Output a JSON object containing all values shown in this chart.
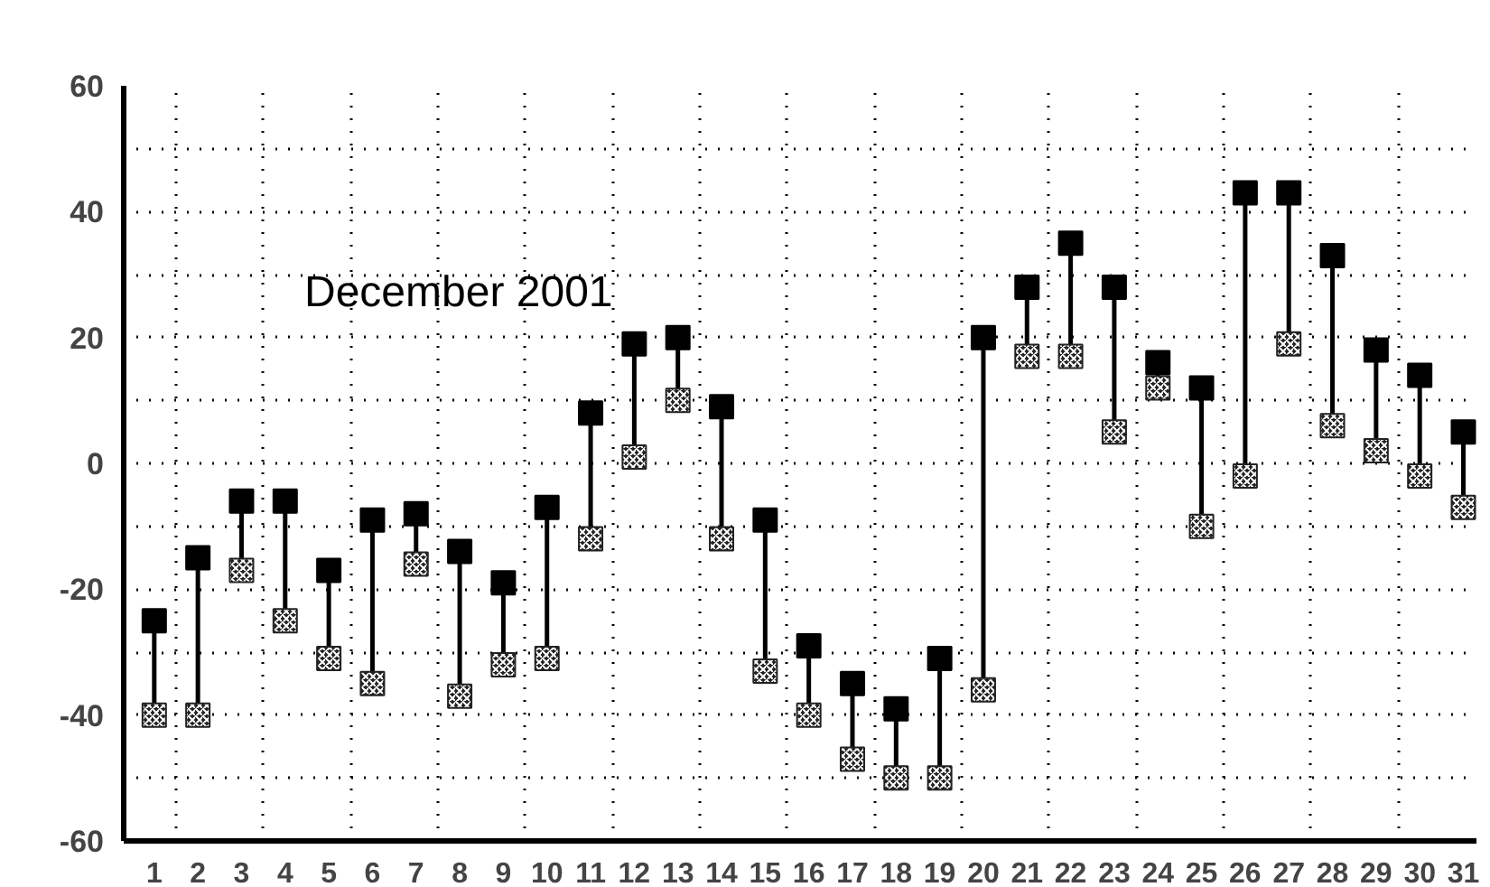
{
  "chart_data": {
    "type": "scatter",
    "title": "December 2001",
    "marker": "square",
    "x": [
      1,
      2,
      3,
      4,
      5,
      6,
      7,
      8,
      9,
      10,
      11,
      12,
      13,
      14,
      15,
      16,
      17,
      18,
      19,
      20,
      21,
      22,
      23,
      24,
      25,
      26,
      27,
      28,
      29,
      30,
      31
    ],
    "series": [
      {
        "color": "#000000",
        "values": [
          -25,
          -15,
          -6,
          -6,
          -17,
          -9,
          -8,
          -14,
          -19,
          -7,
          8,
          19,
          20,
          9,
          -9,
          -29,
          -35,
          -39,
          -31,
          20,
          28,
          35,
          28,
          16,
          12,
          43,
          43,
          33,
          18,
          14,
          5
        ],
        "errors": [
          [
            -40,
            -25
          ],
          [
            -40,
            -15
          ],
          [
            -17,
            -6
          ],
          [
            -25,
            -6
          ],
          [
            -31,
            -17
          ],
          [
            -35,
            -9
          ],
          [
            -16,
            -8
          ],
          [
            -37,
            -14
          ],
          [
            -32,
            -19
          ],
          [
            -31,
            -7
          ],
          [
            -12,
            8
          ],
          [
            1,
            19
          ],
          [
            10,
            20
          ],
          [
            -12,
            9
          ],
          [
            -33,
            -9
          ],
          [
            -40,
            -29
          ],
          [
            -47,
            -35
          ],
          [
            -50,
            -39
          ],
          [
            -50,
            -31
          ],
          [
            -36,
            20
          ],
          [
            17,
            28
          ],
          [
            17,
            35
          ],
          [
            5,
            28
          ],
          [
            12,
            16
          ],
          [
            -10,
            12
          ],
          [
            -2,
            43
          ],
          [
            19,
            43
          ],
          [
            6,
            33
          ],
          [
            2,
            18
          ],
          [
            -2,
            14
          ],
          [
            -7,
            5
          ]
        ]
      },
      {
        "color": "#222222",
        "values": [
          -40,
          -40,
          -17,
          -25,
          -31,
          -35,
          -16,
          -37,
          -32,
          -31,
          -12,
          1,
          10,
          -12,
          -33,
          -40,
          -47,
          -50,
          -50,
          -36,
          17,
          17,
          5,
          12,
          -10,
          -2,
          19,
          6,
          2,
          -2,
          -7
        ]
      }
    ],
    "xlim": [
      0.3,
      31.3
    ],
    "xticks": [
      1,
      2,
      3,
      4,
      5,
      6,
      7,
      8,
      9,
      10,
      11,
      12,
      13,
      14,
      15,
      16,
      17,
      18,
      19,
      20,
      21,
      22,
      23,
      24,
      25,
      26,
      27,
      28,
      29,
      30,
      31
    ],
    "ylim": [
      -60,
      60
    ],
    "yticks": [
      -60,
      {
        "value": -50,
        "label": null
      },
      -40,
      {
        "value": -30,
        "label": null
      },
      -20,
      {
        "value": -10,
        "label": null
      },
      0,
      {
        "value": 10,
        "label": null
      },
      20,
      {
        "value": 30,
        "label": null
      },
      40,
      {
        "value": 50,
        "label": null
      },
      60
    ],
    "grid": true
  }
}
